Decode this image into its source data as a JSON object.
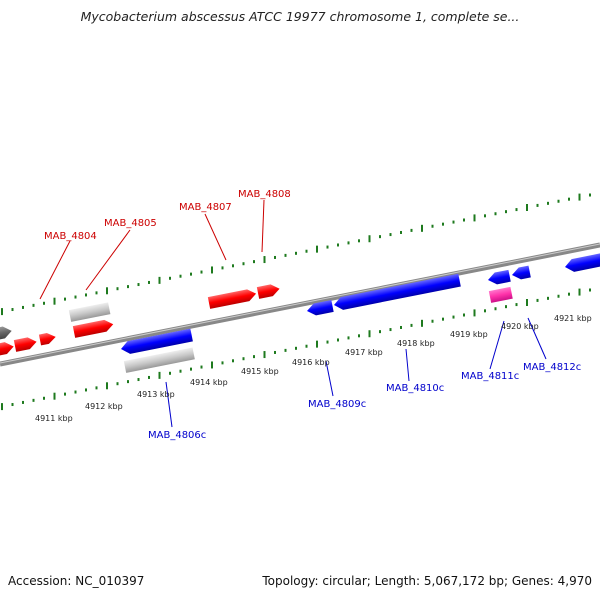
{
  "title": "Mycobacterium abscessus ATCC 19977 chromosome 1, complete se...",
  "footer": {
    "accession": "Accession: NC_010397",
    "summary": "Topology: circular; Length: 5,067,172 bp; Genes: 4,970"
  },
  "colors": {
    "forward_gene": "#ff0000",
    "reverse_gene": "#0000ff",
    "pseudo_gene": "#c8c8c8",
    "rna_gene": "#ff33aa",
    "backbone": "#888888",
    "tick": "#1e7a1e",
    "forward_label": "#cc0000",
    "reverse_label": "#0000cc"
  },
  "kbp_ticks": [
    "4911 kbp",
    "4912 kbp",
    "4913 kbp",
    "4914 kbp",
    "4915 kbp",
    "4916 kbp",
    "4917 kbp",
    "4918 kbp",
    "4919 kbp",
    "4920 kbp",
    "4921 kbp"
  ],
  "gene_labels": {
    "forward": [
      "MAB_4804",
      "MAB_4805",
      "MAB_4807",
      "MAB_4808"
    ],
    "reverse": [
      "MAB_4806c",
      "MAB_4809c",
      "MAB_4810c",
      "MAB_4811c",
      "MAB_4812c"
    ]
  }
}
